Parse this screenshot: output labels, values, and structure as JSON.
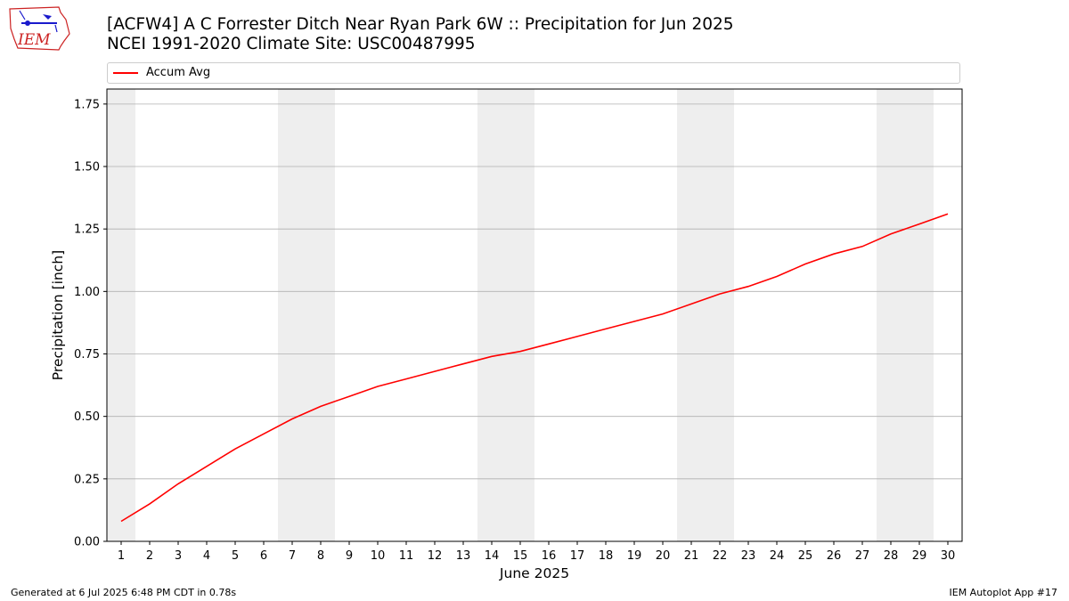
{
  "logo": {
    "text": "IEM"
  },
  "title": {
    "line1": "[ACFW4] A C Forrester Ditch Near Ryan Park 6W :: Precipitation for Jun 2025",
    "line2": "NCEI 1991-2020 Climate Site: USC00487995"
  },
  "footer": {
    "left": "Generated at 6 Jul 2025 6:48 PM CDT in 0.78s",
    "right": "IEM Autoplot App #17"
  },
  "colors": {
    "series": "#ff0000",
    "weekend_band": "#eeeeee",
    "grid": "#b0b0b0",
    "logo_red": "#cc2222",
    "logo_blue": "#1a1acc"
  },
  "chart_data": {
    "type": "line",
    "xlabel": "June 2025",
    "ylabel": "Precipitation [inch]",
    "x": [
      1,
      2,
      3,
      4,
      5,
      6,
      7,
      8,
      9,
      10,
      11,
      12,
      13,
      14,
      15,
      16,
      17,
      18,
      19,
      20,
      21,
      22,
      23,
      24,
      25,
      26,
      27,
      28,
      29,
      30
    ],
    "xlim": [
      0.5,
      30.5
    ],
    "ylim": [
      0,
      1.81
    ],
    "yticks": [
      0.0,
      0.25,
      0.5,
      0.75,
      1.0,
      1.25,
      1.5,
      1.75
    ],
    "ytick_labels": [
      "0.00",
      "0.25",
      "0.50",
      "0.75",
      "1.00",
      "1.25",
      "1.50",
      "1.75"
    ],
    "grid": "horizontal",
    "legend_position": "top",
    "weekend_days": [
      1,
      7,
      8,
      14,
      15,
      21,
      22,
      28,
      29
    ],
    "series": [
      {
        "name": "Accum Avg",
        "color": "#ff0000",
        "values": [
          0.08,
          0.15,
          0.23,
          0.3,
          0.37,
          0.43,
          0.49,
          0.54,
          0.58,
          0.62,
          0.65,
          0.68,
          0.71,
          0.74,
          0.76,
          0.79,
          0.82,
          0.85,
          0.88,
          0.91,
          0.95,
          0.99,
          1.02,
          1.06,
          1.11,
          1.15,
          1.18,
          1.23,
          1.27,
          1.31
        ]
      }
    ]
  }
}
